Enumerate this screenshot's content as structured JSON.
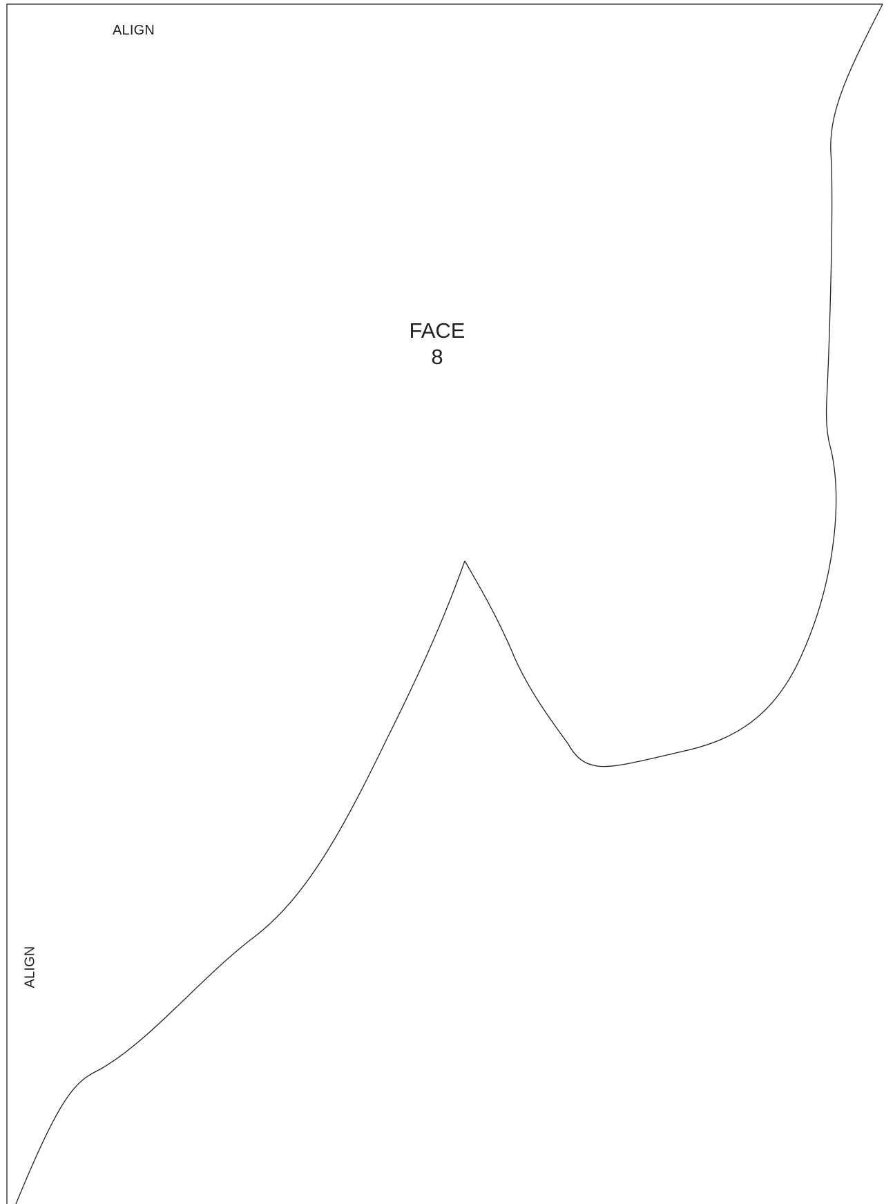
{
  "labels": {
    "align_top": "ALIGN",
    "align_side": "ALIGN",
    "face_title": "FACE",
    "face_number": "8"
  },
  "colors": {
    "background": "#ffffff",
    "outline": "#231f20",
    "text": "#231f20"
  }
}
